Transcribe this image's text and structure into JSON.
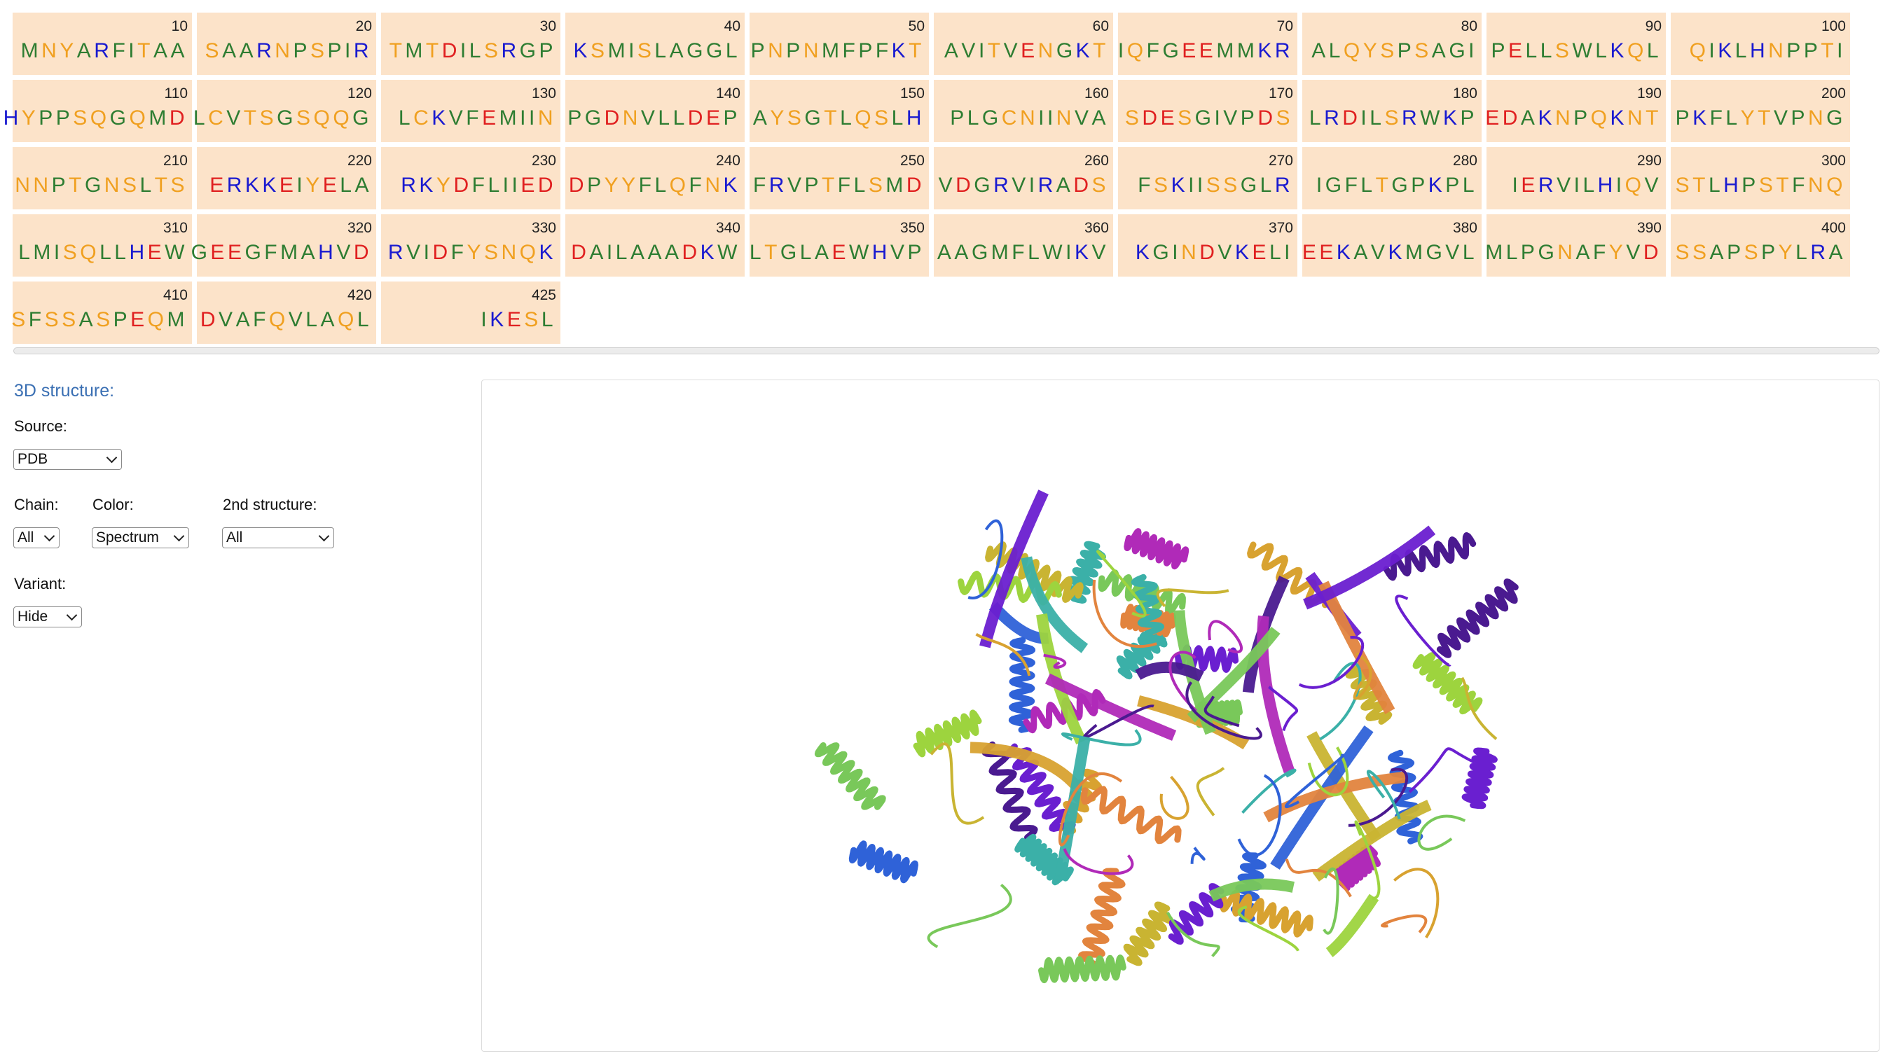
{
  "sequence": {
    "blocks": [
      {
        "num": "10",
        "residues": "MNYARFITAA"
      },
      {
        "num": "20",
        "residues": "SAARNPSPIR"
      },
      {
        "num": "30",
        "residues": "TMTDILSRGP"
      },
      {
        "num": "40",
        "residues": "KSMISLAGGL"
      },
      {
        "num": "50",
        "residues": "PNPNMFPFKT"
      },
      {
        "num": "60",
        "residues": "AVITVENGKT"
      },
      {
        "num": "70",
        "residues": "IQFGEEMMKR"
      },
      {
        "num": "80",
        "residues": "ALQYSPSAGI"
      },
      {
        "num": "90",
        "residues": "PELLSWLKQL"
      },
      {
        "num": "100",
        "residues": "QIKLHNPPTI"
      },
      {
        "num": "110",
        "residues": "HYPPSQGQMD"
      },
      {
        "num": "120",
        "residues": "LCVTSGSQQG"
      },
      {
        "num": "130",
        "residues": "LCKVFEMIIN"
      },
      {
        "num": "140",
        "residues": "PGDNVLLDEP"
      },
      {
        "num": "150",
        "residues": "AYSGTLQSLH"
      },
      {
        "num": "160",
        "residues": "PLGCNIINVA"
      },
      {
        "num": "170",
        "residues": "SDESGIVPDS"
      },
      {
        "num": "180",
        "residues": "LRDILSRWKP"
      },
      {
        "num": "190",
        "residues": "EDAKNPQKNT"
      },
      {
        "num": "200",
        "residues": "PKFLYTVPNG"
      },
      {
        "num": "210",
        "residues": "NNPTGNSLTS"
      },
      {
        "num": "220",
        "residues": "ERKKEIYELA"
      },
      {
        "num": "230",
        "residues": "RKYDFLIIED"
      },
      {
        "num": "240",
        "residues": "DPYYFLQFNK"
      },
      {
        "num": "250",
        "residues": "FRVPTFLSMD"
      },
      {
        "num": "260",
        "residues": "VDGRVIRADS"
      },
      {
        "num": "270",
        "residues": "FSKIISSGLR"
      },
      {
        "num": "280",
        "residues": "IGFLTGPKPL"
      },
      {
        "num": "290",
        "residues": "IERVILHIQV"
      },
      {
        "num": "300",
        "residues": "STLHPSTFNQ"
      },
      {
        "num": "310",
        "residues": "LMISQLLHEW"
      },
      {
        "num": "320",
        "residues": "GEEGFMAHVD"
      },
      {
        "num": "330",
        "residues": "RVIDFYSNQK"
      },
      {
        "num": "340",
        "residues": "DAILAAADKW"
      },
      {
        "num": "350",
        "residues": "LTGLAEWHVP"
      },
      {
        "num": "360",
        "residues": "AAGMFLWIKV"
      },
      {
        "num": "370",
        "residues": "KGINDVKELI"
      },
      {
        "num": "380",
        "residues": "EEKAVKMGVL"
      },
      {
        "num": "390",
        "residues": "MLPGNAFYVD"
      },
      {
        "num": "400",
        "residues": "SSAPSPYLRA"
      },
      {
        "num": "410",
        "residues": "SFSSASPEQM"
      },
      {
        "num": "420",
        "residues": "DVAFQVLAQL"
      },
      {
        "num": "425",
        "residues": "IKESL"
      }
    ],
    "residue_colors": {
      "hydrophobic": "#2e7d32",
      "polar": "#f0a020",
      "basic": "#1a1ad0",
      "acidic": "#e02020"
    }
  },
  "structure": {
    "heading": "3D structure:",
    "source_label": "Source:",
    "source_value": "PDB",
    "chain_label": "Chain:",
    "chain_value": "All",
    "color_label": "Color:",
    "color_value": "Spectrum",
    "secondary_label": "2nd structure:",
    "secondary_value": "All",
    "variant_label": "Variant:",
    "variant_value": "Hide",
    "spectrum_colors": [
      "#6a1fd0",
      "#2f62d8",
      "#3bb0a8",
      "#79c85a",
      "#9dd43e",
      "#c9b432",
      "#d8a230",
      "#e2843e",
      "#b02ab8",
      "#4a1a90"
    ]
  }
}
